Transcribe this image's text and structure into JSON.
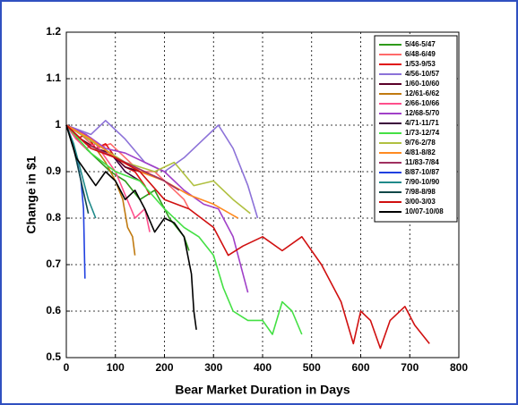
{
  "chart_data": {
    "type": "line",
    "xlabel": "Bear Market Duration in Days",
    "ylabel": "Change in $1",
    "xlim": [
      0,
      800
    ],
    "ylim": [
      0.5,
      1.2
    ],
    "xticks": [
      0,
      100,
      200,
      300,
      400,
      500,
      600,
      700,
      800
    ],
    "yticks": [
      0.5,
      0.6,
      0.7,
      0.8,
      0.9,
      1,
      1.1,
      1.2
    ],
    "grid": true,
    "legend": "upper right",
    "series": [
      {
        "name": "5/46-5/47",
        "color": "#2e9a1a",
        "x": [
          0,
          30,
          60,
          90,
          120,
          150,
          180,
          210,
          240,
          250
        ],
        "values": [
          1,
          0.96,
          0.93,
          0.9,
          0.88,
          0.84,
          0.86,
          0.8,
          0.76,
          0.73
        ]
      },
      {
        "name": "6/48-6/49",
        "color": "#ff6a6a",
        "x": [
          0,
          30,
          60,
          90,
          120,
          150,
          180,
          210,
          240,
          250
        ],
        "values": [
          1,
          0.98,
          0.95,
          0.96,
          0.93,
          0.9,
          0.9,
          0.87,
          0.84,
          0.82
        ]
      },
      {
        "name": "1/53-9/53",
        "color": "#e01010",
        "x": [
          0,
          20,
          40,
          60,
          80,
          100,
          120,
          140,
          160,
          170
        ],
        "values": [
          1,
          0.97,
          0.98,
          0.95,
          0.96,
          0.93,
          0.91,
          0.9,
          0.87,
          0.85
        ]
      },
      {
        "name": "4/56-10/57",
        "color": "#8c72d8",
        "x": [
          0,
          50,
          80,
          120,
          160,
          200,
          240,
          280,
          310,
          340,
          370,
          390
        ],
        "values": [
          1,
          0.98,
          1.01,
          0.97,
          0.92,
          0.9,
          0.93,
          0.97,
          1.0,
          0.95,
          0.87,
          0.8
        ]
      },
      {
        "name": "1/60-10/60",
        "color": "#5a0028",
        "x": [
          0,
          30,
          60,
          90,
          120,
          150,
          180,
          200
        ],
        "values": [
          1,
          0.97,
          0.95,
          0.94,
          0.91,
          0.9,
          0.89,
          0.88
        ]
      },
      {
        "name": "12/61-6/62",
        "color": "#c07a10",
        "x": [
          0,
          20,
          40,
          60,
          80,
          100,
          115,
          125,
          135,
          140
        ],
        "values": [
          1,
          0.98,
          0.96,
          0.95,
          0.92,
          0.88,
          0.84,
          0.78,
          0.76,
          0.72
        ]
      },
      {
        "name": "2/66-10/66",
        "color": "#ff4f8c",
        "x": [
          0,
          20,
          40,
          60,
          80,
          100,
          120,
          140,
          160,
          170
        ],
        "values": [
          1,
          0.97,
          0.95,
          0.96,
          0.93,
          0.9,
          0.85,
          0.8,
          0.82,
          0.77
        ]
      },
      {
        "name": "12/68-5/70",
        "color": "#a040c8",
        "x": [
          0,
          40,
          80,
          120,
          160,
          200,
          240,
          280,
          310,
          340,
          360,
          370
        ],
        "values": [
          1,
          0.98,
          0.95,
          0.94,
          0.92,
          0.9,
          0.86,
          0.83,
          0.82,
          0.76,
          0.68,
          0.64
        ]
      },
      {
        "name": "4/71-11/71",
        "color": "#3a003a",
        "x": [
          0,
          30,
          60,
          90,
          120,
          150
        ],
        "values": [
          1,
          0.98,
          0.96,
          0.94,
          0.9,
          0.88
        ]
      },
      {
        "name": "1/73-12/74",
        "color": "#44e044",
        "x": [
          0,
          50,
          100,
          150,
          200,
          240,
          270,
          300,
          320,
          340,
          370,
          400,
          420,
          440,
          460,
          480
        ],
        "values": [
          1,
          0.94,
          0.9,
          0.88,
          0.82,
          0.78,
          0.76,
          0.72,
          0.65,
          0.6,
          0.58,
          0.58,
          0.55,
          0.62,
          0.6,
          0.55
        ]
      },
      {
        "name": "9/76-2/78",
        "color": "#b0c040",
        "x": [
          0,
          60,
          120,
          180,
          220,
          260,
          300,
          340,
          375
        ],
        "values": [
          1,
          0.96,
          0.92,
          0.9,
          0.92,
          0.87,
          0.88,
          0.84,
          0.81
        ]
      },
      {
        "name": "4/81-8/82",
        "color": "#ff8a20",
        "x": [
          0,
          50,
          100,
          150,
          200,
          250,
          300,
          350
        ],
        "values": [
          1,
          0.97,
          0.93,
          0.9,
          0.88,
          0.85,
          0.83,
          0.8
        ]
      },
      {
        "name": "11/83-7/84",
        "color": "#a03060",
        "x": [
          0,
          40,
          80,
          120,
          160,
          200,
          230
        ],
        "values": [
          1,
          0.96,
          0.94,
          0.92,
          0.9,
          0.88,
          0.86
        ]
      },
      {
        "name": "8/87-10/87",
        "color": "#2040e0",
        "x": [
          0,
          10,
          20,
          30,
          35,
          38
        ],
        "values": [
          1,
          0.97,
          0.93,
          0.88,
          0.82,
          0.67
        ]
      },
      {
        "name": "7/90-10/90",
        "color": "#208a8a",
        "x": [
          0,
          15,
          30,
          45,
          60
        ],
        "values": [
          1,
          0.96,
          0.9,
          0.84,
          0.8
        ]
      },
      {
        "name": "7/98-8/98",
        "color": "#104848",
        "x": [
          0,
          15,
          30,
          45
        ],
        "values": [
          1,
          0.95,
          0.88,
          0.81
        ]
      },
      {
        "name": "3/00-3/03",
        "color": "#d01010",
        "x": [
          0,
          50,
          100,
          150,
          200,
          250,
          300,
          330,
          360,
          400,
          440,
          480,
          520,
          560,
          585,
          600,
          620,
          640,
          660,
          690,
          710,
          740
        ],
        "values": [
          1,
          0.95,
          0.93,
          0.9,
          0.84,
          0.82,
          0.78,
          0.72,
          0.74,
          0.76,
          0.73,
          0.76,
          0.7,
          0.62,
          0.53,
          0.6,
          0.58,
          0.52,
          0.58,
          0.61,
          0.57,
          0.53
        ]
      },
      {
        "name": "10/07-10/08",
        "color": "#000000",
        "x": [
          0,
          20,
          40,
          60,
          80,
          100,
          120,
          140,
          160,
          180,
          200,
          220,
          240,
          255,
          260,
          265
        ],
        "values": [
          1,
          0.93,
          0.9,
          0.87,
          0.9,
          0.88,
          0.84,
          0.86,
          0.82,
          0.77,
          0.8,
          0.79,
          0.76,
          0.68,
          0.6,
          0.56
        ]
      }
    ]
  }
}
